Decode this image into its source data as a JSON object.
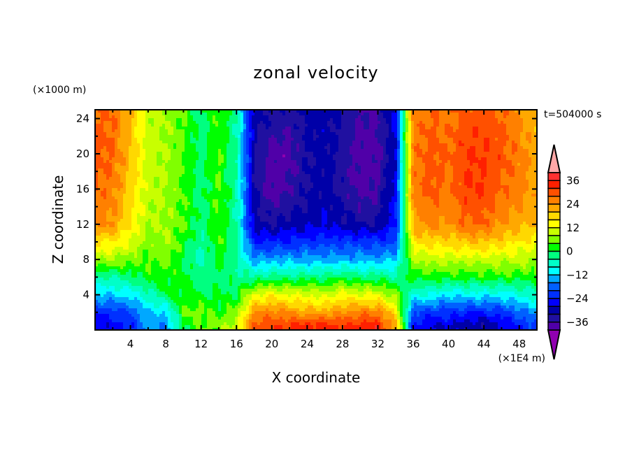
{
  "chart_data": {
    "type": "heatmap",
    "title": "zonal velocity",
    "xlabel": "X coordinate",
    "ylabel": "Z coordinate",
    "x_unit": "(×1E4 m)",
    "y_unit": "(×1000 m)",
    "time_label": "t=504000 s",
    "xlim": [
      0,
      50
    ],
    "ylim": [
      0,
      25
    ],
    "x_ticks": [
      4,
      8,
      12,
      16,
      20,
      24,
      28,
      32,
      36,
      40,
      44,
      48
    ],
    "y_ticks": [
      4,
      8,
      12,
      16,
      20,
      24
    ],
    "levels": {
      "min": -40,
      "max": 40,
      "step": 4
    },
    "colorbar_labels": [
      36,
      24,
      12,
      0,
      -12,
      -24,
      -36
    ],
    "colors": [
      "#5000a8",
      "#2010a0",
      "#0000a8",
      "#0000ff",
      "#0030ff",
      "#0060ff",
      "#00a8ff",
      "#00ffff",
      "#00ffc8",
      "#00ff80",
      "#00ff00",
      "#80ff00",
      "#c8ff00",
      "#ffff00",
      "#ffd800",
      "#ffa800",
      "#ff8000",
      "#ff5000",
      "#ff2000",
      "#ff3030"
    ],
    "under_color": "#9000b0",
    "over_color": "#ffa8a8",
    "grid_x": [
      0,
      2,
      4,
      6,
      8,
      10,
      12,
      14,
      16,
      18,
      20,
      22,
      24,
      26,
      28,
      30,
      32,
      34,
      36,
      38,
      40,
      42,
      44,
      46,
      48,
      50
    ],
    "grid_z": [
      25,
      20,
      16,
      12,
      10,
      8,
      6,
      4,
      2,
      0.5
    ],
    "values_by_x": [
      [
        28,
        30,
        28,
        26,
        16,
        8,
        -4,
        -12,
        -24,
        -28
      ],
      [
        28,
        28,
        26,
        24,
        16,
        8,
        -4,
        -12,
        -22,
        -26
      ],
      [
        20,
        20,
        18,
        16,
        12,
        6,
        -2,
        -10,
        -20,
        -24
      ],
      [
        10,
        10,
        10,
        8,
        6,
        4,
        2,
        -6,
        -12,
        -14
      ],
      [
        8,
        8,
        8,
        8,
        8,
        6,
        2,
        0,
        -12,
        -16
      ],
      [
        4,
        4,
        4,
        4,
        2,
        0,
        2,
        2,
        4,
        0
      ],
      [
        -2,
        -2,
        -2,
        -2,
        -4,
        -6,
        -2,
        0,
        6,
        4
      ],
      [
        4,
        4,
        4,
        4,
        4,
        2,
        -2,
        0,
        2,
        6
      ],
      [
        -4,
        -4,
        -4,
        -4,
        -4,
        -4,
        -2,
        0,
        6,
        10
      ],
      [
        -30,
        -32,
        -32,
        -30,
        -24,
        -14,
        -4,
        12,
        24,
        30
      ],
      [
        -32,
        -38,
        -38,
        -32,
        -24,
        -14,
        -2,
        14,
        26,
        32
      ],
      [
        -34,
        -38,
        -36,
        -30,
        -24,
        -14,
        -2,
        12,
        24,
        32
      ],
      [
        -30,
        -32,
        -32,
        -30,
        -22,
        -14,
        -2,
        12,
        22,
        34
      ],
      [
        -30,
        -30,
        -30,
        -28,
        -22,
        -14,
        -2,
        10,
        22,
        34
      ],
      [
        -32,
        -34,
        -34,
        -30,
        -22,
        -14,
        0,
        14,
        24,
        32
      ],
      [
        -36,
        -38,
        -38,
        -32,
        -22,
        -14,
        -2,
        12,
        26,
        34
      ],
      [
        -36,
        -38,
        -36,
        -32,
        -22,
        -14,
        -2,
        12,
        26,
        34
      ],
      [
        -26,
        -28,
        -26,
        -24,
        -20,
        -12,
        -4,
        6,
        16,
        22
      ],
      [
        26,
        26,
        26,
        22,
        16,
        8,
        2,
        -8,
        -20,
        -24
      ],
      [
        28,
        30,
        30,
        26,
        18,
        10,
        2,
        -8,
        -22,
        -28
      ],
      [
        26,
        28,
        26,
        24,
        18,
        10,
        2,
        -12,
        -22,
        -28
      ],
      [
        30,
        32,
        32,
        28,
        20,
        10,
        2,
        -10,
        -24,
        -30
      ],
      [
        30,
        32,
        32,
        28,
        20,
        10,
        2,
        -10,
        -24,
        -32
      ],
      [
        28,
        30,
        28,
        24,
        18,
        10,
        2,
        -10,
        -22,
        -28
      ],
      [
        24,
        26,
        26,
        22,
        16,
        10,
        2,
        -8,
        -18,
        -24
      ],
      [
        20,
        22,
        22,
        20,
        14,
        8,
        2,
        -6,
        -14,
        -20
      ]
    ]
  }
}
